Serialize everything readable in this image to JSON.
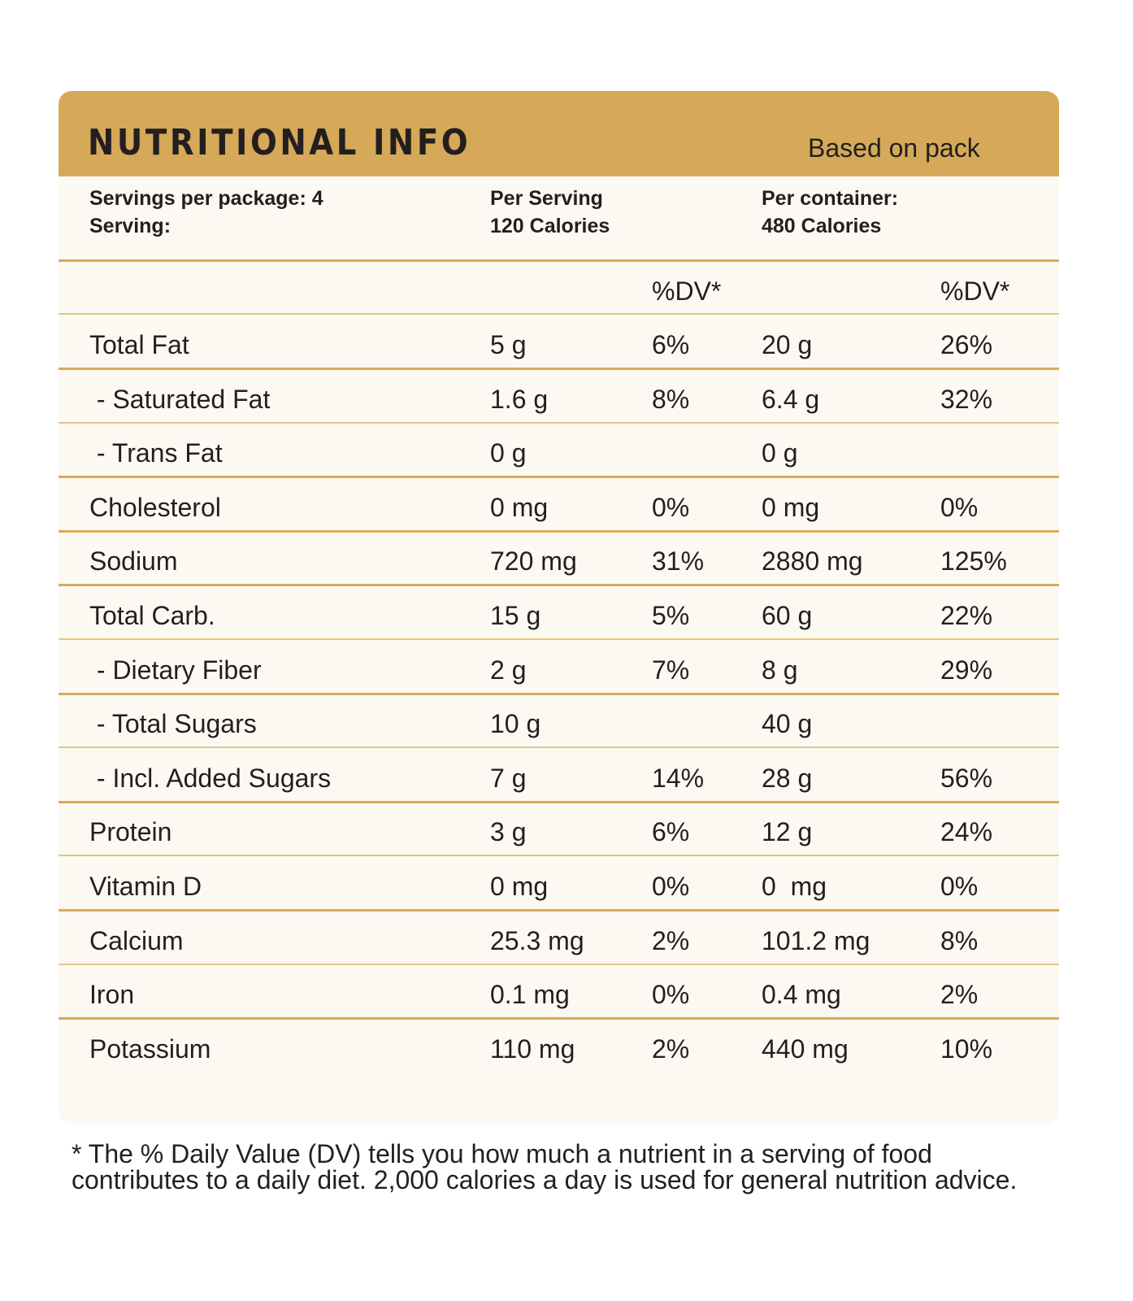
{
  "header": {
    "title": "NUTRITIONAL INFO",
    "subtitle": "Based on pack"
  },
  "summary": {
    "servings": "Servings per package: 4",
    "serving": "Serving:",
    "per_serving": "Per Serving",
    "per_serving_calories": "120 Calories",
    "per_container": "Per container:",
    "per_container_calories": "480 Calories"
  },
  "table": {
    "dv_header_1": "%DV*",
    "dv_header_2": "%DV*",
    "rows": [
      [
        "Total Fat",
        "5 g",
        "6%",
        "20 g",
        "26%"
      ],
      [
        " - Saturated Fat",
        "1.6 g",
        "8%",
        "6.4 g",
        "32%"
      ],
      [
        " - Trans Fat",
        "0 g",
        null,
        "0 g",
        null
      ],
      [
        "Cholesterol",
        "0 mg",
        "0%",
        "0 mg",
        "0%"
      ],
      [
        "Sodium",
        "720 mg",
        "31%",
        "2880 mg",
        "125%"
      ],
      [
        "Total Carb.",
        "15 g",
        "5%",
        "60 g",
        "22%"
      ],
      [
        " - Dietary Fiber",
        "2 g",
        "7%",
        "8 g",
        "29%"
      ],
      [
        " - Total Sugars",
        "10 g",
        null,
        "40 g",
        null
      ],
      [
        " - Incl. Added Sugars",
        "7 g",
        "14%",
        "28 g",
        "56%"
      ],
      [
        "Protein",
        "3 g",
        "6%",
        "12 g",
        "24%"
      ],
      [
        "Vitamin D",
        "0 mg",
        "0%",
        "0  mg",
        "0%"
      ],
      [
        "Calcium",
        "25.3 mg",
        "2%",
        "101.2 mg",
        "8%"
      ],
      [
        "Iron",
        "0.1 mg",
        "0%",
        "0.4 mg",
        "2%"
      ],
      [
        "Potassium",
        "110 mg",
        "2%",
        "440 mg",
        "10%"
      ]
    ]
  },
  "footnote": {
    "line1": "* The % Daily Value (DV) tells you how much a nutrient in a serving of food",
    "line2": "contributes to a daily diet. 2,000 calories a day is used for general nutrition advice."
  }
}
